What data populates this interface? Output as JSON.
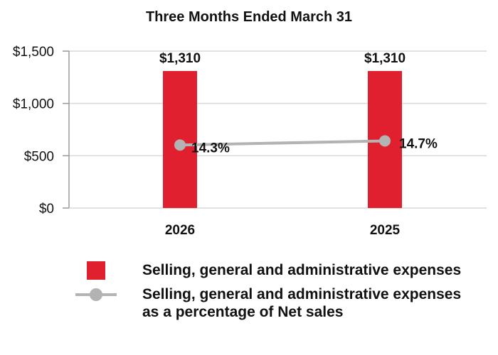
{
  "chart_data": {
    "type": "bar+line",
    "title": "Three Months Ended March 31",
    "categories": [
      "2026",
      "2025"
    ],
    "ylim": [
      0,
      1500
    ],
    "yticks": [
      "$0",
      "$500",
      "$1,000",
      "$1,500"
    ],
    "ytick_values": [
      0,
      500,
      1000,
      1500
    ],
    "grid": true,
    "legend_position": "bottom",
    "series": [
      {
        "name": "Selling, general and administrative expenses",
        "type": "bar",
        "color": "#e0202e",
        "values": [
          1310,
          1310
        ],
        "labels": [
          "$1,310",
          "$1,310"
        ]
      },
      {
        "name": "Selling, general and administrative expenses as a percentage of Net sales",
        "type": "line",
        "color": "#b3b3b3",
        "values": [
          14.3,
          14.7
        ],
        "labels": [
          "14.3%",
          "14.7%"
        ]
      }
    ]
  }
}
